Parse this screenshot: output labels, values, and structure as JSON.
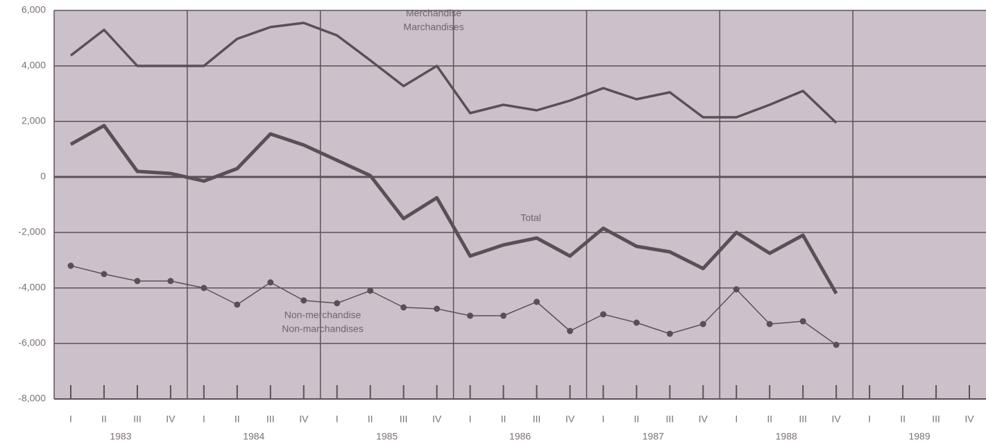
{
  "chart_data": {
    "type": "line",
    "categories": [
      "I",
      "II",
      "III",
      "IV",
      "I",
      "II",
      "III",
      "IV",
      "I",
      "II",
      "III",
      "IV",
      "I",
      "II",
      "III",
      "IV",
      "I",
      "II",
      "III",
      "IV",
      "I",
      "II",
      "III",
      "IV",
      "I",
      "II",
      "III",
      "IV"
    ],
    "years": [
      "1983",
      "1984",
      "1985",
      "1986",
      "1987",
      "1988",
      "1989"
    ],
    "ylim": [
      -8000,
      6000
    ],
    "yticks": [
      {
        "value": -8000,
        "label": "-8,000"
      },
      {
        "value": -6000,
        "label": "-6,000"
      },
      {
        "value": -4000,
        "label": "-4,000"
      },
      {
        "value": -2000,
        "label": "-2,000"
      },
      0,
      {
        "value": 2000,
        "label": "2,000"
      },
      {
        "value": 4000,
        "label": "4,000"
      },
      {
        "value": 6000,
        "label": "6,000"
      }
    ],
    "grid": true,
    "series": [
      {
        "name": [
          "Merchandise",
          "Marchandises"
        ],
        "color": "#5b4f57",
        "values": [
          4375,
          5300,
          4000,
          4000,
          4000,
          4975,
          5400,
          5550,
          5100,
          4200,
          3275,
          4000,
          2300,
          2600,
          2400,
          2750,
          3200,
          2800,
          3050,
          2150,
          2150,
          2600,
          3100,
          1950,
          null,
          null,
          null,
          null
        ]
      },
      {
        "name": "Total",
        "color": "#5b4f57",
        "values": [
          1175,
          1850,
          200,
          125,
          -150,
          300,
          1550,
          1150,
          600,
          50,
          -1500,
          -750,
          -2850,
          -2450,
          -2200,
          -2850,
          -1850,
          -2500,
          -2700,
          -3300,
          -2000,
          -2750,
          -2100,
          -4200,
          null,
          null,
          null,
          null
        ]
      },
      {
        "name": [
          "Non-merchandise",
          "Non-marchandises"
        ],
        "color": "#5b4f57",
        "values": [
          -3200,
          -3500,
          -3750,
          -3750,
          -4000,
          -4600,
          -3800,
          -4450,
          -4550,
          -4100,
          -4700,
          -4750,
          -5000,
          -5000,
          -4500,
          -5550,
          -4950,
          -5250,
          -5650,
          -5300,
          -4050,
          -5300,
          -5200,
          -6050,
          null,
          null,
          null,
          null
        ]
      }
    ]
  }
}
